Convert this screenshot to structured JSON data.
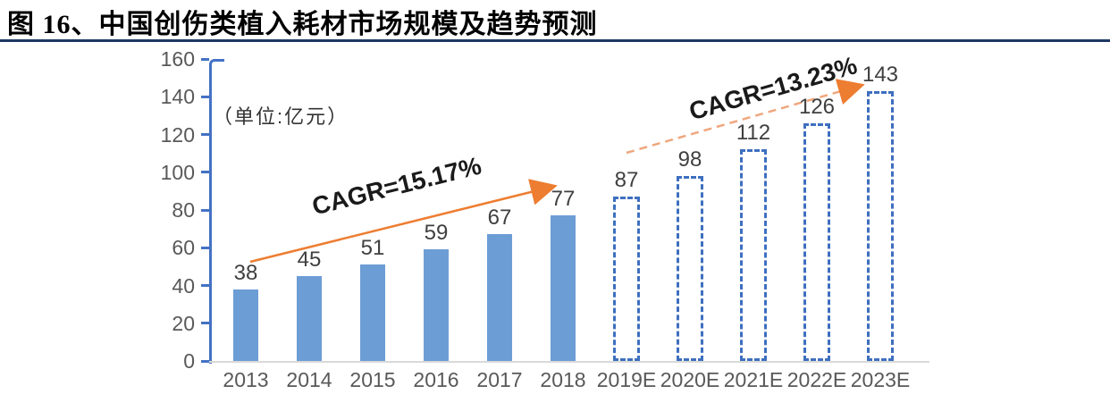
{
  "figure": {
    "title": "图 16、中国创伤类植入耗材市场规模及趋势预测",
    "unit_label": "（单位:亿元）"
  },
  "chart_data": {
    "type": "bar",
    "title": "中国创伤类植入耗材市场规模及趋势预测",
    "unit": "亿元",
    "categories": [
      "2013",
      "2014",
      "2015",
      "2016",
      "2017",
      "2018",
      "2019E",
      "2020E",
      "2021E",
      "2022E",
      "2023E"
    ],
    "values": [
      38,
      45,
      51,
      59,
      67,
      77,
      87,
      98,
      112,
      126,
      143
    ],
    "bar_styles": [
      "solid",
      "solid",
      "solid",
      "solid",
      "solid",
      "solid",
      "dashed",
      "dashed",
      "dashed",
      "dashed",
      "dashed"
    ],
    "ylim": [
      0,
      160
    ],
    "yticks": [
      0,
      20,
      40,
      60,
      80,
      100,
      120,
      140,
      160
    ],
    "grid": false,
    "legend": "none",
    "annotations": [
      {
        "text": "CAGR=15.17%",
        "style": "solid-arrow",
        "covers": "2013-2018"
      },
      {
        "text": "CAGR=13.23%",
        "style": "dashed-arrow",
        "covers": "2019E-2023E"
      }
    ],
    "colors": {
      "solid_bar": "#6D9DD5",
      "dashed_bar_border": "#3E6FBF",
      "axis": "#4472C4",
      "x_axis_line": "#D9D9D9",
      "arrow": "#ED7D31",
      "arrow_dashed": "#EFA77E",
      "title_rule": "#1F3864",
      "tick_label": "#595959",
      "value_label": "#404040"
    }
  }
}
